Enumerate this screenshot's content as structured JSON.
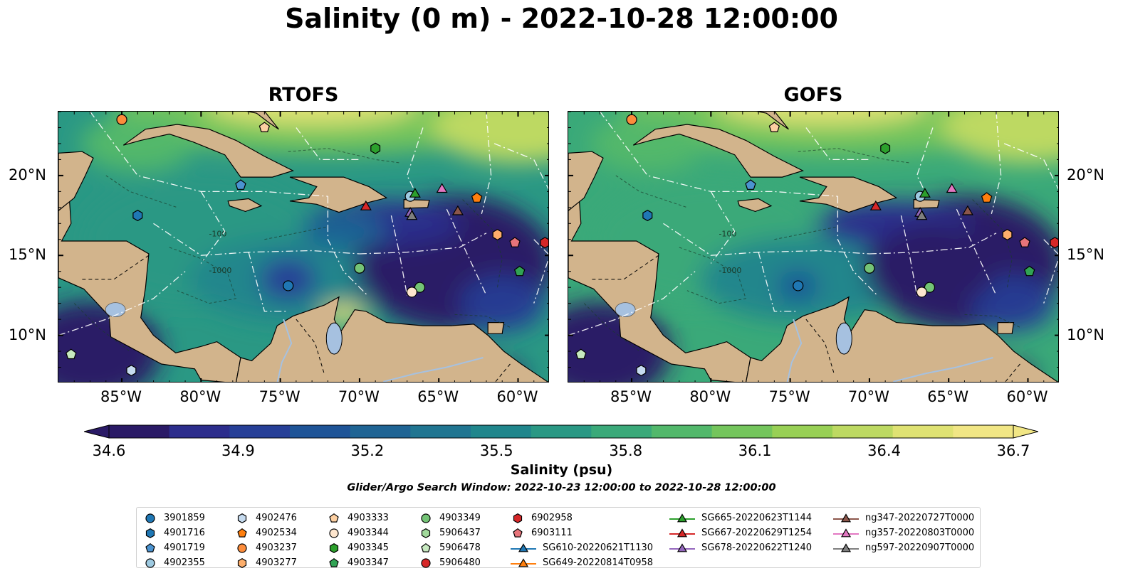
{
  "title": "Salinity (0 m) - 2022-10-28 12:00:00",
  "panels": [
    {
      "title": "RTOFS"
    },
    {
      "title": "GOFS"
    }
  ],
  "lon_ticks": [
    "85°W",
    "80°W",
    "75°W",
    "70°W",
    "65°W",
    "60°W"
  ],
  "lat_ticks": [
    "20°N",
    "15°N",
    "10°N"
  ],
  "contour_labels": [
    "-100",
    "-1000"
  ],
  "colorbar": {
    "min": 34.6,
    "max": 36.7,
    "ticks": [
      "34.6",
      "34.9",
      "35.2",
      "35.5",
      "35.8",
      "36.1",
      "36.4",
      "36.7"
    ],
    "label": "Salinity (psu)",
    "colors": [
      "#2a1a66",
      "#2c2d8c",
      "#263f97",
      "#1e5497",
      "#1f6494",
      "#207591",
      "#20868c",
      "#2a9884",
      "#3aa979",
      "#52b86b",
      "#74c55c",
      "#98d055",
      "#bdd962",
      "#dfe273",
      "#f1e685"
    ]
  },
  "search_window": "Glider/Argo Search Window: 2022-10-23 12:00:00 to 2022-10-28 12:00:00",
  "colors": {
    "land": "#d2b48c",
    "rivers": "#a6c1e0",
    "eez": "#ffffff"
  },
  "legend": {
    "columns": [
      [
        {
          "label": "3901859",
          "marker": "circle",
          "color": "#1f77b4"
        },
        {
          "label": "4901716",
          "marker": "hexagon",
          "color": "#1f77b4"
        },
        {
          "label": "4901719",
          "marker": "pentagon",
          "color": "#4b93d0"
        },
        {
          "label": "4902355",
          "marker": "circle",
          "color": "#9ecae1"
        }
      ],
      [
        {
          "label": "4902476",
          "marker": "hexagon",
          "color": "#c6dbef"
        },
        {
          "label": "4902534",
          "marker": "pentagon",
          "color": "#ff7f0e"
        },
        {
          "label": "4903237",
          "marker": "circle",
          "color": "#fd8d3c"
        },
        {
          "label": "4903277",
          "marker": "hexagon",
          "color": "#fdae6b"
        }
      ],
      [
        {
          "label": "4903333",
          "marker": "pentagon",
          "color": "#fdd0a2"
        },
        {
          "label": "4903344",
          "marker": "circle",
          "color": "#fee6ce"
        },
        {
          "label": "4903345",
          "marker": "hexagon",
          "color": "#2ca02c"
        },
        {
          "label": "4903347",
          "marker": "pentagon",
          "color": "#31a354"
        }
      ],
      [
        {
          "label": "4903349",
          "marker": "circle",
          "color": "#74c476"
        },
        {
          "label": "5906437",
          "marker": "hexagon",
          "color": "#a1d99b"
        },
        {
          "label": "5906478",
          "marker": "pentagon",
          "color": "#c7e9c0"
        },
        {
          "label": "5906480",
          "marker": "circle",
          "color": "#d62728"
        }
      ],
      [
        {
          "label": "6902958",
          "marker": "hexagon",
          "color": "#d62728"
        },
        {
          "label": "6903111",
          "marker": "pentagon",
          "color": "#e7747a"
        },
        {
          "label": "SG610-20220621T1130",
          "marker": "triangle",
          "color": "#1f77b4"
        },
        {
          "label": "SG649-20220814T0958",
          "marker": "triangle",
          "color": "#ff7f0e"
        }
      ],
      [
        {
          "label": "SG665-20220623T1144",
          "marker": "triangle",
          "color": "#2ca02c"
        },
        {
          "label": "SG667-20220629T1254",
          "marker": "triangle",
          "color": "#d62728"
        },
        {
          "label": "SG678-20220622T1240",
          "marker": "triangle",
          "color": "#9467bd"
        }
      ],
      [
        {
          "label": "ng347-20220727T0000",
          "marker": "triangle",
          "color": "#8c564b"
        },
        {
          "label": "ng357-20220803T0000",
          "marker": "triangle",
          "color": "#e377c2"
        },
        {
          "label": "ng597-20220907T0000",
          "marker": "triangle",
          "color": "#7f7f7f"
        }
      ]
    ]
  },
  "map_markers": [
    {
      "marker": "circle",
      "color": "#fd8d3c",
      "lon": -85.0,
      "lat": 23.5
    },
    {
      "marker": "pentagon",
      "color": "#fdd0a2",
      "lon": -76.0,
      "lat": 23.0
    },
    {
      "marker": "hexagon",
      "color": "#2ca02c",
      "lon": -69.0,
      "lat": 21.7
    },
    {
      "marker": "pentagon",
      "color": "#4b93d0",
      "lon": -77.5,
      "lat": 19.4
    },
    {
      "marker": "hexagon",
      "color": "#1f77b4",
      "lon": -84.0,
      "lat": 17.5
    },
    {
      "marker": "circle",
      "color": "#9ecae1",
      "lon": -66.8,
      "lat": 18.7
    },
    {
      "marker": "triangle",
      "color": "#2ca02c",
      "lon": -66.5,
      "lat": 18.9
    },
    {
      "marker": "triangle",
      "color": "#e377c2",
      "lon": -64.8,
      "lat": 19.2
    },
    {
      "marker": "triangle",
      "color": "#d62728",
      "lon": -69.6,
      "lat": 18.1
    },
    {
      "marker": "triangle",
      "color": "#9467bd",
      "lon": -66.8,
      "lat": 17.7
    },
    {
      "marker": "triangle",
      "color": "#7f7f7f",
      "lon": -66.7,
      "lat": 17.5
    },
    {
      "marker": "pentagon",
      "color": "#ff7f0e",
      "lon": -62.6,
      "lat": 18.6
    },
    {
      "marker": "triangle",
      "color": "#8c564b",
      "lon": -63.8,
      "lat": 17.8
    },
    {
      "marker": "hexagon",
      "color": "#fdae6b",
      "lon": -61.3,
      "lat": 16.3
    },
    {
      "marker": "pentagon",
      "color": "#e7747a",
      "lon": -60.2,
      "lat": 15.8
    },
    {
      "marker": "hexagon",
      "color": "#d62728",
      "lon": -58.3,
      "lat": 15.8
    },
    {
      "marker": "pentagon",
      "color": "#31a354",
      "lon": -59.9,
      "lat": 14.0
    },
    {
      "marker": "circle",
      "color": "#74c476",
      "lon": -70.0,
      "lat": 14.2
    },
    {
      "marker": "circle",
      "color": "#1f77b4",
      "lon": -74.5,
      "lat": 13.1
    },
    {
      "marker": "circle",
      "color": "#74c476",
      "lon": -66.2,
      "lat": 13.0
    },
    {
      "marker": "circle",
      "color": "#fee6ce",
      "lon": -66.7,
      "lat": 12.7
    },
    {
      "marker": "hexagon",
      "color": "#c6dbef",
      "lon": -84.4,
      "lat": 7.8
    },
    {
      "marker": "pentagon",
      "color": "#c7e9c0",
      "lon": -88.2,
      "lat": 8.8
    }
  ]
}
